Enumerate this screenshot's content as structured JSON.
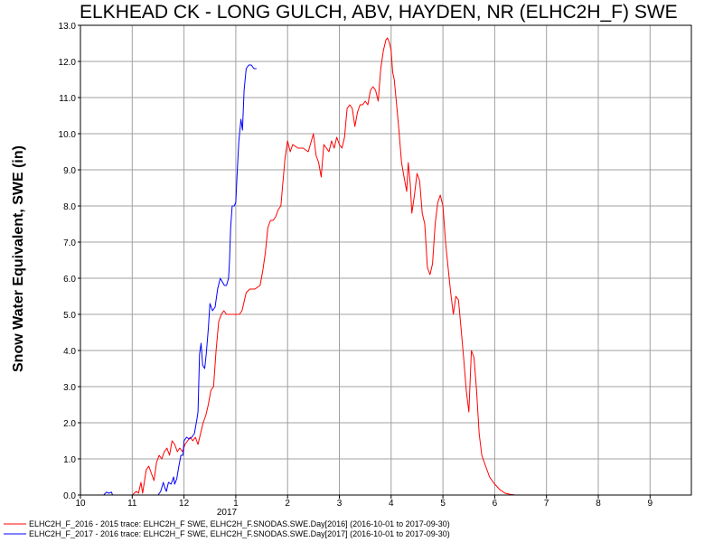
{
  "chart_data": {
    "type": "line",
    "title": "ELKHEAD CK - LONG GULCH, ABV, HAYDEN, NR (ELHC2H_F) SWE",
    "ylabel": "Snow Water Equivalent, SWE (in)",
    "xlabel": "",
    "ylim": [
      0,
      13
    ],
    "xlim": [
      10,
      9.9
    ],
    "grid": true,
    "legend_position": "bottom-left",
    "y_ticks": [
      "0.0",
      "1.0",
      "2.0",
      "3.0",
      "4.0",
      "5.0",
      "6.0",
      "7.0",
      "8.0",
      "9.0",
      "10.0",
      "11.0",
      "12.0",
      "13.0"
    ],
    "x_ticks": [
      {
        "label": "10",
        "m": 0
      },
      {
        "label": "11",
        "m": 1
      },
      {
        "label": "12",
        "m": 2
      },
      {
        "label": "1",
        "m": 3
      },
      {
        "label": "2",
        "m": 4
      },
      {
        "label": "3",
        "m": 5
      },
      {
        "label": "4",
        "m": 6
      },
      {
        "label": "5",
        "m": 7
      },
      {
        "label": "6",
        "m": 8
      },
      {
        "label": "7",
        "m": 9
      },
      {
        "label": "8",
        "m": 10
      },
      {
        "label": "9",
        "m": 11
      }
    ],
    "year_label": "2017",
    "series": [
      {
        "name": "ELHC2H_F_2016 - 2015 trace: ELHC2H_F SWE, ELHC2H_F.SNODAS.SWE.Day[2016] (2016-10-01 to 2017-09-30)",
        "color": "#ff0000",
        "points": [
          [
            1.0,
            0
          ],
          [
            1.08,
            0.1
          ],
          [
            1.12,
            0.05
          ],
          [
            1.17,
            0.35
          ],
          [
            1.2,
            0.05
          ],
          [
            1.27,
            0.7
          ],
          [
            1.32,
            0.8
          ],
          [
            1.37,
            0.6
          ],
          [
            1.42,
            0.4
          ],
          [
            1.47,
            0.9
          ],
          [
            1.52,
            1.1
          ],
          [
            1.57,
            1.0
          ],
          [
            1.62,
            1.2
          ],
          [
            1.67,
            1.3
          ],
          [
            1.72,
            1.1
          ],
          [
            1.77,
            1.5
          ],
          [
            1.82,
            1.4
          ],
          [
            1.87,
            1.2
          ],
          [
            1.92,
            1.3
          ],
          [
            1.97,
            1.2
          ],
          [
            2.02,
            1.4
          ],
          [
            2.07,
            1.5
          ],
          [
            2.12,
            1.6
          ],
          [
            2.17,
            1.5
          ],
          [
            2.22,
            1.6
          ],
          [
            2.27,
            1.4
          ],
          [
            2.32,
            1.7
          ],
          [
            2.37,
            2.0
          ],
          [
            2.42,
            2.2
          ],
          [
            2.47,
            2.5
          ],
          [
            2.52,
            2.9
          ],
          [
            2.57,
            3.0
          ],
          [
            2.62,
            4.0
          ],
          [
            2.67,
            4.8
          ],
          [
            2.72,
            5.0
          ],
          [
            2.77,
            5.1
          ],
          [
            2.82,
            5.0
          ],
          [
            2.87,
            5.0
          ],
          [
            2.97,
            5.0
          ],
          [
            3.07,
            5.0
          ],
          [
            3.12,
            5.1
          ],
          [
            3.2,
            5.6
          ],
          [
            3.27,
            5.7
          ],
          [
            3.37,
            5.7
          ],
          [
            3.47,
            5.8
          ],
          [
            3.52,
            6.2
          ],
          [
            3.57,
            6.7
          ],
          [
            3.62,
            7.4
          ],
          [
            3.67,
            7.6
          ],
          [
            3.72,
            7.6
          ],
          [
            3.77,
            7.7
          ],
          [
            3.82,
            7.9
          ],
          [
            3.87,
            8.0
          ],
          [
            3.9,
            8.5
          ],
          [
            3.95,
            9.3
          ],
          [
            4.0,
            9.8
          ],
          [
            4.05,
            9.5
          ],
          [
            4.1,
            9.7
          ],
          [
            4.2,
            9.6
          ],
          [
            4.3,
            9.6
          ],
          [
            4.4,
            9.5
          ],
          [
            4.5,
            10.0
          ],
          [
            4.55,
            9.4
          ],
          [
            4.6,
            9.2
          ],
          [
            4.65,
            8.8
          ],
          [
            4.7,
            9.7
          ],
          [
            4.75,
            9.6
          ],
          [
            4.8,
            9.5
          ],
          [
            4.85,
            9.8
          ],
          [
            4.9,
            9.6
          ],
          [
            4.95,
            9.9
          ],
          [
            5.0,
            9.7
          ],
          [
            5.05,
            9.6
          ],
          [
            5.1,
            9.9
          ],
          [
            5.15,
            10.7
          ],
          [
            5.2,
            10.8
          ],
          [
            5.25,
            10.7
          ],
          [
            5.3,
            10.2
          ],
          [
            5.35,
            10.6
          ],
          [
            5.4,
            10.8
          ],
          [
            5.45,
            10.8
          ],
          [
            5.5,
            10.9
          ],
          [
            5.55,
            10.8
          ],
          [
            5.6,
            11.2
          ],
          [
            5.65,
            11.3
          ],
          [
            5.7,
            11.2
          ],
          [
            5.75,
            10.9
          ],
          [
            5.8,
            11.8
          ],
          [
            5.85,
            12.3
          ],
          [
            5.9,
            12.6
          ],
          [
            5.93,
            12.65
          ],
          [
            5.97,
            12.5
          ],
          [
            6.0,
            12.3
          ],
          [
            6.03,
            11.7
          ],
          [
            6.06,
            11.5
          ],
          [
            6.1,
            10.9
          ],
          [
            6.15,
            10.1
          ],
          [
            6.2,
            9.2
          ],
          [
            6.25,
            8.8
          ],
          [
            6.3,
            8.4
          ],
          [
            6.33,
            9.2
          ],
          [
            6.37,
            8.6
          ],
          [
            6.4,
            7.8
          ],
          [
            6.45,
            8.3
          ],
          [
            6.5,
            8.9
          ],
          [
            6.55,
            8.7
          ],
          [
            6.6,
            7.8
          ],
          [
            6.65,
            7.5
          ],
          [
            6.7,
            6.3
          ],
          [
            6.75,
            6.1
          ],
          [
            6.8,
            6.4
          ],
          [
            6.85,
            7.5
          ],
          [
            6.9,
            8.1
          ],
          [
            6.95,
            8.3
          ],
          [
            7.0,
            8.0
          ],
          [
            7.05,
            7.0
          ],
          [
            7.1,
            6.3
          ],
          [
            7.15,
            5.6
          ],
          [
            7.2,
            5.0
          ],
          [
            7.25,
            5.5
          ],
          [
            7.3,
            5.4
          ],
          [
            7.35,
            4.6
          ],
          [
            7.4,
            3.8
          ],
          [
            7.45,
            2.9
          ],
          [
            7.5,
            2.3
          ],
          [
            7.55,
            4.0
          ],
          [
            7.6,
            3.8
          ],
          [
            7.65,
            2.9
          ],
          [
            7.7,
            1.7
          ],
          [
            7.75,
            1.1
          ],
          [
            7.8,
            0.9
          ],
          [
            7.85,
            0.7
          ],
          [
            7.9,
            0.5
          ],
          [
            7.95,
            0.4
          ],
          [
            8.0,
            0.3
          ],
          [
            8.1,
            0.15
          ],
          [
            8.2,
            0.05
          ],
          [
            8.3,
            0.02
          ],
          [
            8.4,
            0
          ]
        ]
      },
      {
        "name": "ELHC2H_F_2017 - 2016 trace: ELHC2H_F SWE, ELHC2H_F.SNODAS.SWE.Day[2017] (2016-10-01 to 2017-09-30)",
        "color": "#0000ff",
        "points": [
          [
            0.45,
            0
          ],
          [
            0.5,
            0.08
          ],
          [
            0.55,
            0.05
          ],
          [
            0.6,
            0.08
          ],
          [
            0.62,
            0
          ],
          [
            1.5,
            0
          ],
          [
            1.55,
            0.1
          ],
          [
            1.6,
            0.35
          ],
          [
            1.63,
            0.2
          ],
          [
            1.66,
            0.1
          ],
          [
            1.7,
            0.35
          ],
          [
            1.75,
            0.3
          ],
          [
            1.8,
            0.5
          ],
          [
            1.82,
            0.3
          ],
          [
            1.86,
            0.45
          ],
          [
            1.9,
            0.8
          ],
          [
            1.94,
            1.1
          ],
          [
            1.98,
            1.1
          ],
          [
            2.0,
            1.5
          ],
          [
            2.05,
            1.6
          ],
          [
            2.1,
            1.55
          ],
          [
            2.15,
            1.6
          ],
          [
            2.2,
            1.7
          ],
          [
            2.25,
            2.1
          ],
          [
            2.27,
            2.3
          ],
          [
            2.3,
            3.9
          ],
          [
            2.33,
            4.2
          ],
          [
            2.36,
            3.6
          ],
          [
            2.4,
            3.5
          ],
          [
            2.43,
            3.9
          ],
          [
            2.47,
            4.6
          ],
          [
            2.5,
            5.3
          ],
          [
            2.55,
            5.1
          ],
          [
            2.6,
            5.2
          ],
          [
            2.65,
            5.7
          ],
          [
            2.7,
            6.0
          ],
          [
            2.74,
            5.9
          ],
          [
            2.78,
            5.8
          ],
          [
            2.82,
            5.8
          ],
          [
            2.86,
            6.0
          ],
          [
            2.88,
            6.5
          ],
          [
            2.9,
            7.4
          ],
          [
            2.93,
            8.0
          ],
          [
            2.97,
            8.0
          ],
          [
            3.0,
            8.1
          ],
          [
            3.03,
            9.0
          ],
          [
            3.06,
            9.8
          ],
          [
            3.1,
            10.4
          ],
          [
            3.13,
            10.1
          ],
          [
            3.16,
            11.2
          ],
          [
            3.2,
            11.8
          ],
          [
            3.25,
            11.9
          ],
          [
            3.3,
            11.9
          ],
          [
            3.35,
            11.8
          ],
          [
            3.4,
            11.8
          ]
        ]
      }
    ]
  }
}
